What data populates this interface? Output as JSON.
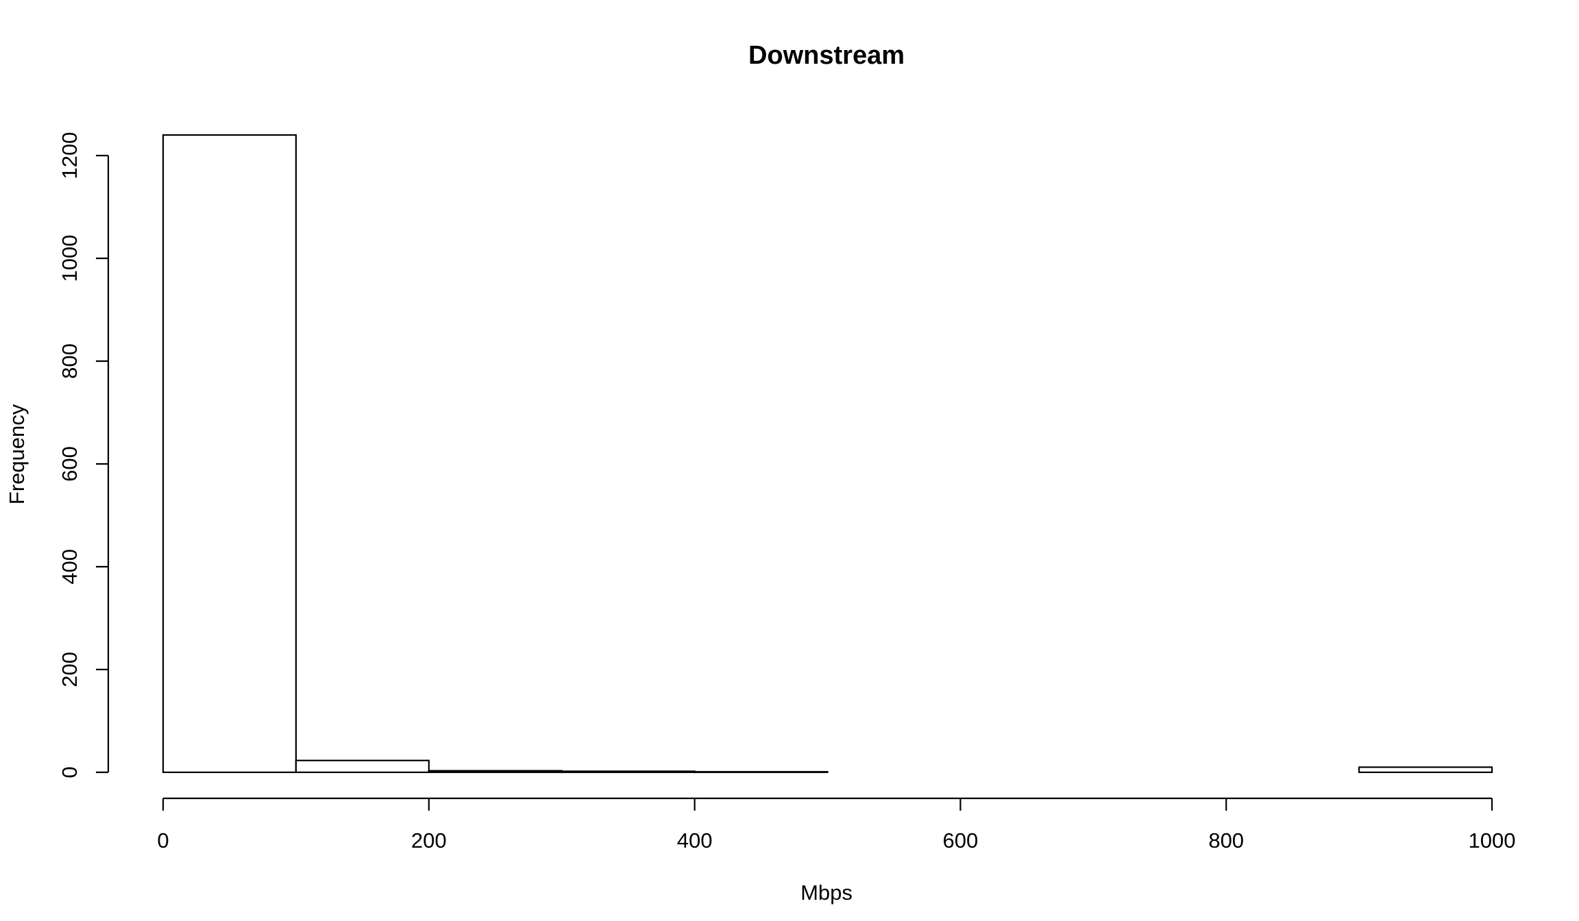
{
  "chart_data": {
    "type": "bar",
    "title": "Downstream",
    "xlabel": "Mbps",
    "ylabel": "Frequency",
    "bins": [
      {
        "start": 0,
        "end": 100,
        "count": 1240
      },
      {
        "start": 100,
        "end": 200,
        "count": 23
      },
      {
        "start": 200,
        "end": 300,
        "count": 3
      },
      {
        "start": 300,
        "end": 400,
        "count": 2
      },
      {
        "start": 400,
        "end": 500,
        "count": 1
      },
      {
        "start": 500,
        "end": 600,
        "count": 0
      },
      {
        "start": 600,
        "end": 700,
        "count": 0
      },
      {
        "start": 700,
        "end": 800,
        "count": 0
      },
      {
        "start": 800,
        "end": 900,
        "count": 0
      },
      {
        "start": 900,
        "end": 1000,
        "count": 10
      }
    ],
    "xlim": [
      0,
      1000
    ],
    "ylim": [
      0,
      1240
    ],
    "x_ticks": [
      0,
      200,
      400,
      600,
      800,
      1000
    ],
    "y_ticks": [
      0,
      200,
      400,
      600,
      800,
      1000,
      1200
    ],
    "grid": false,
    "bar_fill": "#ffffff",
    "bar_stroke": "#000000"
  }
}
